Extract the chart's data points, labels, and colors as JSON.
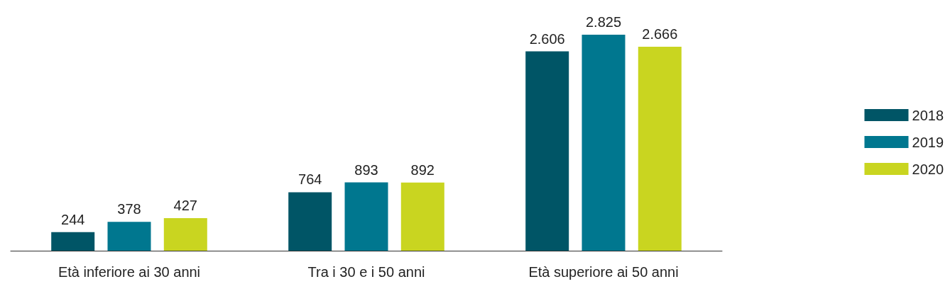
{
  "chart_data": {
    "type": "bar",
    "categories": [
      "Età inferiore ai 30 anni",
      "Tra i 30 e i 50 anni",
      "Età superiore ai 50 anni"
    ],
    "series": [
      {
        "name": "2018",
        "color": "#005566",
        "values": [
          244,
          764,
          2606
        ],
        "value_labels": [
          "244",
          "764",
          "2.606"
        ]
      },
      {
        "name": "2019",
        "color": "#00778f",
        "values": [
          378,
          893,
          2825
        ],
        "value_labels": [
          "378",
          "893",
          "2.825"
        ]
      },
      {
        "name": "2020",
        "color": "#c9d520",
        "values": [
          427,
          892,
          2666
        ],
        "value_labels": [
          "427",
          "892",
          "2.666"
        ]
      }
    ],
    "legend": "right"
  }
}
